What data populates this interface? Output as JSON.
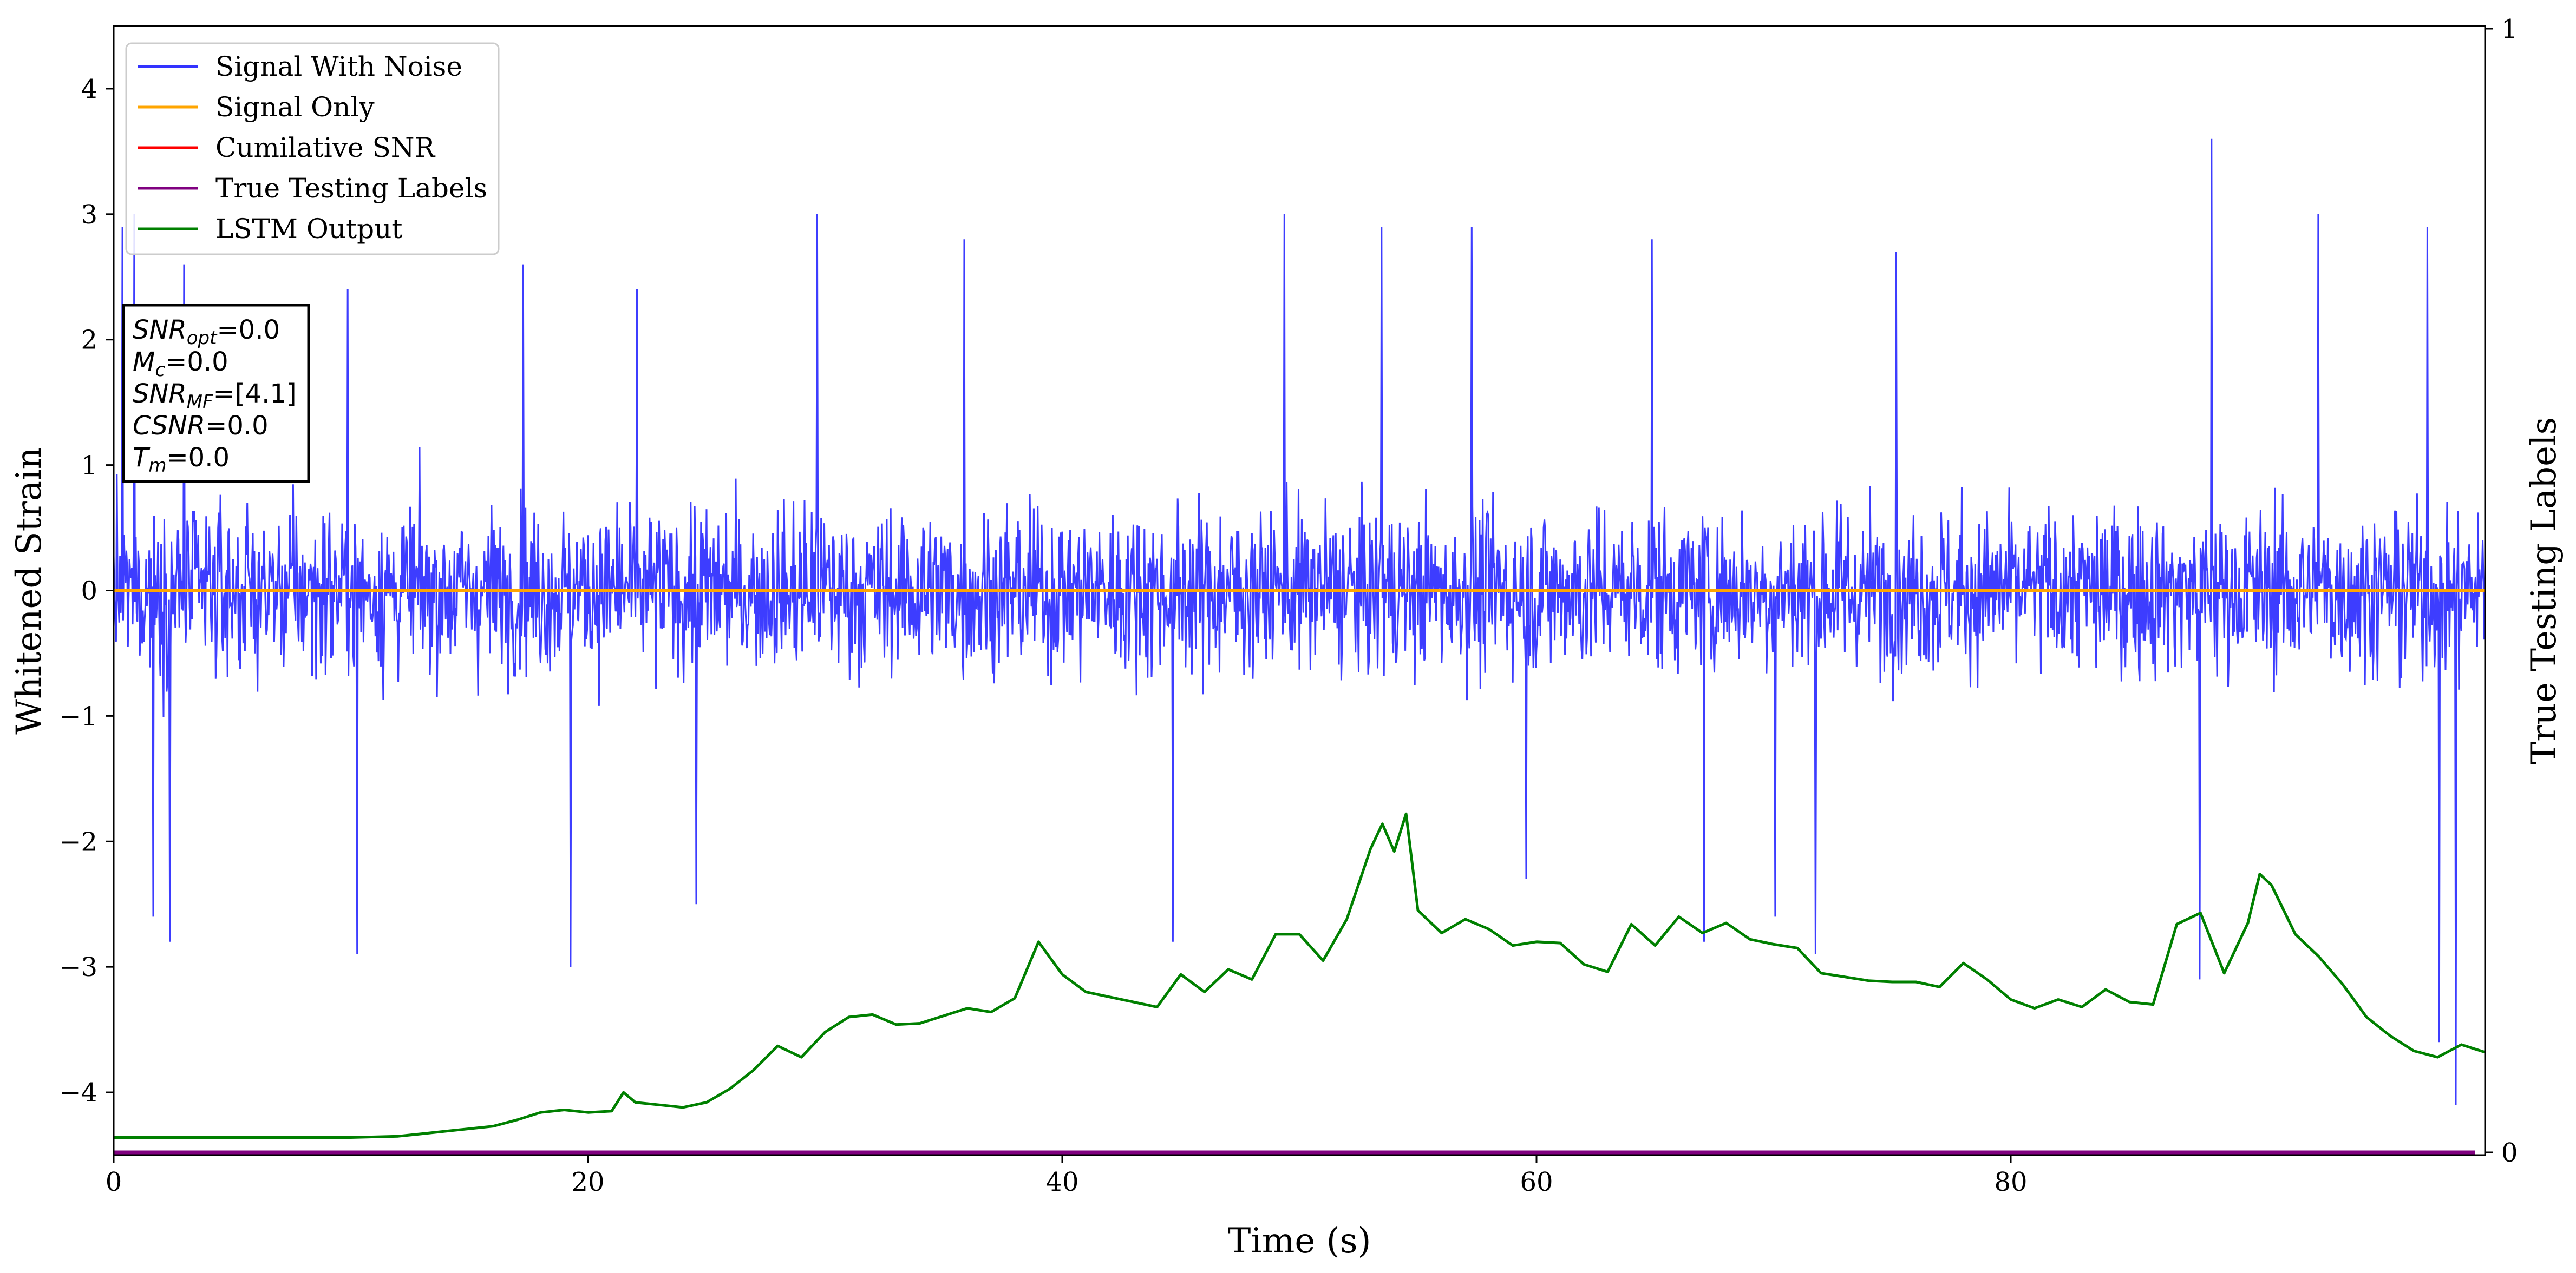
{
  "chart_data": {
    "type": "line",
    "xlabel": "Time (s)",
    "ylabel": "Whitened Strain",
    "y2label": "True Testing Labels",
    "xlim": [
      0,
      100
    ],
    "ylim": [
      -4.5,
      4.5
    ],
    "y2lim": [
      0,
      1
    ],
    "xticks": [
      "0",
      "20",
      "40",
      "60",
      "80"
    ],
    "yticks": [
      "4",
      "3",
      "2",
      "1",
      "0",
      "−1",
      "−2",
      "−3",
      "−4"
    ],
    "y2ticks": [
      "1",
      "0"
    ],
    "legend_position": "upper left",
    "legend": [
      {
        "label": "Signal With Noise",
        "color": "#3333ff"
      },
      {
        "label": "Signal Only",
        "color": "#ffa500"
      },
      {
        "label": "Cumilative SNR",
        "color": "#ff0000"
      },
      {
        "label": "True Testing Labels",
        "color": "#800080"
      },
      {
        "label": "LSTM Output",
        "color": "#008000"
      }
    ],
    "annotation": [
      {
        "name": "SNR",
        "sub": "opt",
        "value": "=0.0"
      },
      {
        "name": "M",
        "sub": "c",
        "value": "=0.0"
      },
      {
        "name": "SNR",
        "sub": "MF",
        "value": "=[4.1]"
      },
      {
        "name": "CSNR",
        "sub": "",
        "value": "=0.0"
      },
      {
        "name": "T",
        "sub": "m",
        "value": "=0.0"
      }
    ],
    "series": [
      {
        "name": "Signal With Noise",
        "color": "#3333ff",
        "note": "dense noise trace, bulk envelope roughly between -1.5 and +1.8 with spikes",
        "envelope_upper": 1.8,
        "envelope_lower": -1.4,
        "spikes": [
          [
            0.4,
            2.9
          ],
          [
            0.9,
            3.0
          ],
          [
            3.0,
            2.6
          ],
          [
            9.9,
            2.4
          ],
          [
            17.3,
            2.6
          ],
          [
            22.1,
            2.4
          ],
          [
            29.7,
            3.0
          ],
          [
            35.9,
            2.8
          ],
          [
            49.4,
            3.0
          ],
          [
            53.5,
            2.9
          ],
          [
            57.3,
            2.9
          ],
          [
            64.9,
            2.8
          ],
          [
            75.2,
            2.7
          ],
          [
            88.5,
            3.6
          ],
          [
            93.0,
            3.0
          ],
          [
            97.6,
            2.9
          ],
          [
            1.7,
            -2.6
          ],
          [
            2.4,
            -2.8
          ],
          [
            10.3,
            -2.9
          ],
          [
            19.3,
            -3.0
          ],
          [
            24.6,
            -2.5
          ],
          [
            44.7,
            -2.8
          ],
          [
            59.6,
            -2.3
          ],
          [
            67.1,
            -2.8
          ],
          [
            70.1,
            -2.6
          ],
          [
            71.8,
            -2.9
          ],
          [
            88.0,
            -3.1
          ],
          [
            98.1,
            -3.6
          ],
          [
            98.8,
            -4.1
          ]
        ]
      },
      {
        "name": "Signal Only",
        "color": "#ffa500",
        "x": [
          0,
          100
        ],
        "y": [
          0,
          0
        ]
      },
      {
        "name": "True Testing Labels",
        "color": "#800080",
        "axis": "right",
        "x": [
          0,
          100
        ],
        "y": [
          0,
          0
        ]
      },
      {
        "name": "LSTM Output",
        "color": "#008000",
        "axis": "left",
        "x": [
          0,
          10,
          12,
          13,
          14,
          15,
          16,
          17,
          18,
          19,
          20,
          21,
          21.5,
          22,
          23,
          24,
          25,
          26,
          27,
          28,
          29,
          30,
          31,
          32,
          33,
          34,
          35,
          36,
          37,
          38,
          39,
          40,
          41,
          42,
          43,
          44,
          45,
          46,
          47,
          48,
          49,
          50,
          51,
          52,
          53,
          53.5,
          54,
          54.5,
          55,
          56,
          57,
          58,
          59,
          60,
          61,
          62,
          63,
          64,
          65,
          66,
          67,
          68,
          69,
          70,
          71,
          72,
          73,
          74,
          75,
          76,
          77,
          78,
          79,
          80,
          81,
          82,
          83,
          84,
          85,
          86,
          87,
          88,
          89,
          90,
          90.5,
          91,
          92,
          93,
          94,
          95,
          96,
          97,
          98,
          99,
          100
        ],
        "y": [
          -4.36,
          -4.36,
          -4.35,
          -4.33,
          -4.31,
          -4.29,
          -4.27,
          -4.22,
          -4.16,
          -4.14,
          -4.16,
          -4.15,
          -4.0,
          -4.08,
          -4.1,
          -4.12,
          -4.08,
          -3.97,
          -3.82,
          -3.63,
          -3.72,
          -3.52,
          -3.4,
          -3.38,
          -3.46,
          -3.45,
          -3.39,
          -3.33,
          -3.36,
          -3.25,
          -2.8,
          -3.06,
          -3.2,
          -3.24,
          -3.28,
          -3.32,
          -3.06,
          -3.2,
          -3.02,
          -3.1,
          -2.74,
          -2.74,
          -2.95,
          -2.62,
          -2.06,
          -1.86,
          -2.08,
          -1.78,
          -2.55,
          -2.73,
          -2.62,
          -2.7,
          -2.83,
          -2.8,
          -2.81,
          -2.98,
          -3.04,
          -2.66,
          -2.83,
          -2.6,
          -2.73,
          -2.65,
          -2.78,
          -2.82,
          -2.85,
          -3.05,
          -3.08,
          -3.11,
          -3.12,
          -3.12,
          -3.16,
          -2.97,
          -3.1,
          -3.26,
          -3.33,
          -3.26,
          -3.32,
          -3.18,
          -3.28,
          -3.3,
          -2.66,
          -2.57,
          -3.05,
          -2.65,
          -2.26,
          -2.35,
          -2.74,
          -2.92,
          -3.14,
          -3.4,
          -3.55,
          -3.67,
          -3.72,
          -3.62,
          -3.68
        ]
      }
    ]
  }
}
